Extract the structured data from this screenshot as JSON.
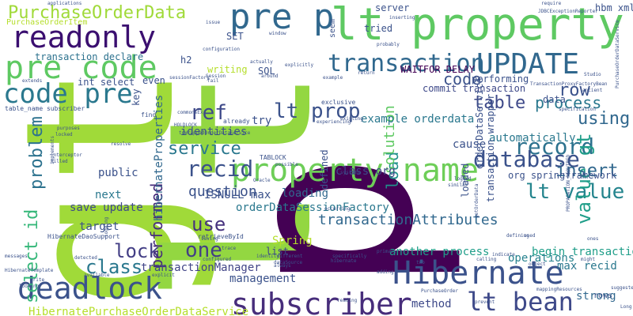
{
  "palette": [
    "#440154",
    "#3b528b",
    "#21918c",
    "#5ec962",
    "#fde725",
    "#2c728e",
    "#addc30",
    "#472d7b",
    "#28ae80",
    "#31688e"
  ],
  "words": [
    {
      "text": "gt",
      "color": "#a0da39",
      "rot": -90
    },
    {
      "text": "lt",
      "color": "#93d741",
      "rot": -90
    },
    {
      "text": "p",
      "color": "#440154",
      "rot": -90
    },
    {
      "text": "lt property",
      "color": "#5ec962",
      "rot": 0
    },
    {
      "text": "readonly",
      "color": "#3b0f70",
      "rot": 0
    },
    {
      "text": "pre p",
      "color": "#31688e",
      "rot": 0
    },
    {
      "text": "pre code",
      "color": "#5ec962",
      "rot": 0
    },
    {
      "text": "code pre",
      "color": "#2a788e",
      "rot": 0
    },
    {
      "text": "UPDATE",
      "color": "#31688e",
      "rot": 0
    },
    {
      "text": "transaction",
      "color": "#30688e",
      "rot": 0
    },
    {
      "text": "property name",
      "color": "#6ece58",
      "rot": 0
    },
    {
      "text": "Hibernate",
      "color": "#3b528b",
      "rot": 0
    },
    {
      "text": "deadlock",
      "color": "#3b528b",
      "rot": 0
    },
    {
      "text": "subscriber",
      "color": "#472d7b",
      "rot": 0
    },
    {
      "text": "lt bean",
      "color": "#3e4989",
      "rot": 0
    },
    {
      "text": "PurchaseOrderData",
      "color": "#a0da39",
      "rot": 0
    },
    {
      "text": "record",
      "color": "#2c728e",
      "rot": 0
    },
    {
      "text": "database",
      "color": "#3b528b",
      "rot": 0
    },
    {
      "text": "lt value",
      "color": "#25858e",
      "rot": 0
    },
    {
      "text": "value gt",
      "color": "#1f9e89",
      "rot": -90
    },
    {
      "text": "lt prop",
      "color": "#3b528b",
      "rot": 0
    },
    {
      "text": "ref",
      "color": "#3e4989",
      "rot": 0
    },
    {
      "text": "recid",
      "color": "#3b528b",
      "rot": 0
    },
    {
      "text": "service",
      "color": "#2a788e",
      "rot": 0
    },
    {
      "text": "select id",
      "color": "#35b779",
      "rot": -90
    },
    {
      "text": "problem",
      "color": "#2c728e",
      "rot": -90
    },
    {
      "text": "class",
      "color": "#2a788e",
      "rot": 0
    },
    {
      "text": "lock",
      "color": "#433e85",
      "rot": 0
    },
    {
      "text": "one",
      "color": "#433e85",
      "rot": 0
    },
    {
      "text": "use",
      "color": "#46327e",
      "rot": 0
    },
    {
      "text": "process",
      "color": "#2a788e",
      "rot": 0
    },
    {
      "text": "table",
      "color": "#3e4989",
      "rot": 0
    },
    {
      "text": "row",
      "color": "#3b528b",
      "rot": 0
    },
    {
      "text": "using",
      "color": "#31688e",
      "rot": 0
    },
    {
      "text": "insert",
      "color": "#31688e",
      "rot": 0
    },
    {
      "text": "code",
      "color": "#3b528b",
      "rot": 0
    },
    {
      "text": "load",
      "color": "#21918c",
      "rot": -90
    },
    {
      "text": "solution",
      "color": "#5ec962",
      "rot": -90
    },
    {
      "text": "performed",
      "color": "#472d7b",
      "rot": -90
    },
    {
      "text": "hibernateProperties",
      "color": "#31688e",
      "rot": -90
    },
    {
      "text": "question",
      "color": "#3b528b",
      "rot": 0
    },
    {
      "text": "transactionAttributes",
      "color": "#31688e",
      "rot": 0
    },
    {
      "text": "transactionManager",
      "color": "#414487",
      "rot": 0
    },
    {
      "text": "example orderdata",
      "color": "#2a788e",
      "rot": 0
    },
    {
      "text": "WAITFOR DELAY",
      "color": "#440154",
      "rot": 0
    },
    {
      "text": "commit transaction",
      "color": "#3e4989",
      "rot": 0
    },
    {
      "text": "transaction declare",
      "color": "#2c728e",
      "rot": 0
    },
    {
      "text": "HibernatePurchaseOrderDataService",
      "color": "#b5de2b",
      "rot": 0
    },
    {
      "text": "orderDataSessionFactory",
      "color": "#2a788e",
      "rot": 0
    },
    {
      "text": "another process",
      "color": "#1f9e89",
      "rot": 0
    },
    {
      "text": "begin transaction",
      "color": "#1f9e89",
      "rot": 0
    },
    {
      "text": "operations",
      "color": "#26828e",
      "rot": 0
    },
    {
      "text": "max recid",
      "color": "#2a788e",
      "rot": 0
    },
    {
      "text": "org springframework",
      "color": "#3b528b",
      "rot": 0
    },
    {
      "text": "automatically",
      "color": "#2a788e",
      "rot": 0
    },
    {
      "text": "identities",
      "color": "#3b528b",
      "rot": 0
    },
    {
      "text": "loading",
      "color": "#31688e",
      "rot": 0
    },
    {
      "text": "Spring",
      "color": "#b5de2b",
      "rot": 0
    },
    {
      "text": "management",
      "color": "#3b528b",
      "rot": 0
    },
    {
      "text": "method",
      "color": "#3e4989",
      "rot": 0
    },
    {
      "text": "strong",
      "color": "#31688e",
      "rot": 0
    },
    {
      "text": "target",
      "color": "#3b528b",
      "rot": 0
    },
    {
      "text": "save update",
      "color": "#3e4989",
      "rot": 0
    },
    {
      "text": "ISNULL max",
      "color": "#3b528b",
      "rot": 0
    },
    {
      "text": "class org",
      "color": "#3e4989",
      "rot": 0
    },
    {
      "text": "public",
      "color": "#3b528b",
      "rot": 0
    },
    {
      "text": "next",
      "color": "#2a788e",
      "rot": 0
    },
    {
      "text": "writing",
      "color": "#b5de2b",
      "rot": 0
    },
    {
      "text": "tried",
      "color": "#3b528b",
      "rot": 0
    },
    {
      "text": "SQL",
      "color": "#3b528b",
      "rot": 0
    },
    {
      "text": "server",
      "color": "#3b528b",
      "rot": 0
    },
    {
      "text": "PurchaseOrderItem",
      "color": "#b5de2b",
      "rot": 0
    },
    {
      "text": "int select",
      "color": "#3b528b",
      "rot": 0
    },
    {
      "text": "h2",
      "color": "#3b528b",
      "rot": 0
    },
    {
      "text": "even",
      "color": "#3b528b",
      "rot": 0
    },
    {
      "text": "SET",
      "color": "#3b528b",
      "rot": 0
    },
    {
      "text": "hbm xml",
      "color": "#3b528b",
      "rot": 0
    },
    {
      "text": "cause",
      "color": "#3b528b",
      "rot": 0
    },
    {
      "text": "try",
      "color": "#3b528b",
      "rot": 0
    },
    {
      "text": "list",
      "color": "#3e4989",
      "rot": 0
    },
    {
      "text": "data",
      "color": "#3b528b",
      "rot": 0
    },
    {
      "text": "defined",
      "color": "#3b528b",
      "rot": -90
    },
    {
      "text": "loaded",
      "color": "#3b528b",
      "rot": -90
    },
    {
      "text": "key",
      "color": "#3b528b",
      "rot": -90
    },
    {
      "text": "orderDataService",
      "color": "#3b528b",
      "rot": -90
    },
    {
      "text": "transaction wrapper",
      "color": "#3b528b",
      "rot": -90
    },
    {
      "text": "seem",
      "color": "#3b528b",
      "rot": -90
    },
    {
      "text": "performing",
      "color": "#3b528b",
      "rot": 0
    },
    {
      "text": "rows",
      "color": "#3b528b",
      "rot": 0
    },
    {
      "text": "TransactionProxyFactoryBean",
      "color": "#3b528b",
      "rot": 0
    },
    {
      "text": "toWrappedOrderDataService",
      "color": "#3b528b",
      "rot": 0
    },
    {
      "text": "HibernateDaoSupport",
      "color": "#3b528b",
      "rot": 0
    },
    {
      "text": "retrieveById",
      "color": "#3b528b",
      "rot": 0
    },
    {
      "text": "TABLOCK",
      "color": "#3b528b",
      "rot": 0
    },
    {
      "text": "already",
      "color": "#3b528b",
      "rot": 0
    },
    {
      "text": "exclusive",
      "color": "#3b528b",
      "rot": 0
    },
    {
      "text": "configuration",
      "color": "#3b528b",
      "rot": 0
    },
    {
      "text": "actually",
      "color": "#3b528b",
      "rot": 0
    },
    {
      "text": "explicitly",
      "color": "#3b528b",
      "rot": 0
    },
    {
      "text": "inserting",
      "color": "#3b528b",
      "rot": 0
    },
    {
      "text": "require",
      "color": "#3b528b",
      "rot": 0
    },
    {
      "text": "applications",
      "color": "#3b528b",
      "rot": 0
    },
    {
      "text": "issue",
      "color": "#3b528b",
      "rot": 0
    },
    {
      "text": "around",
      "color": "#3b528b",
      "rot": 0
    },
    {
      "text": "example",
      "color": "#3b528b",
      "rot": 0
    },
    {
      "text": "return",
      "color": "#3b528b",
      "rot": 0
    },
    {
      "text": "hibernate",
      "color": "#3b528b",
      "rot": 0
    },
    {
      "text": "Oracle",
      "color": "#3b528b",
      "rot": 0
    },
    {
      "text": "possible",
      "color": "#3b528b",
      "rot": 0
    },
    {
      "text": "experiencing",
      "color": "#3b528b",
      "rot": 0
    },
    {
      "text": "existing",
      "color": "#3b528b",
      "rot": 0
    },
    {
      "text": "interceptor",
      "color": "#3b528b",
      "rot": 0
    },
    {
      "text": "killed",
      "color": "#3b528b",
      "rot": 0
    },
    {
      "text": "purposes",
      "color": "#3b528b",
      "rot": 0
    },
    {
      "text": "locked",
      "color": "#3b528b",
      "rot": 0
    },
    {
      "text": "extends",
      "color": "#3b528b",
      "rot": 0
    },
    {
      "text": "messages",
      "color": "#3b528b",
      "rot": 0
    },
    {
      "text": "detected",
      "color": "#3b528b",
      "rot": 0
    },
    {
      "text": "resolve",
      "color": "#3b528b",
      "rot": 0
    },
    {
      "text": "systems",
      "color": "#3b528b",
      "rot": 0
    },
    {
      "text": "occurring",
      "color": "#3b528b",
      "rot": 0
    },
    {
      "text": "identity",
      "color": "#3b528b",
      "rot": 0
    },
    {
      "text": "different",
      "color": "#3b528b",
      "rot": 0
    },
    {
      "text": "specifically",
      "color": "#3b528b",
      "rot": 0
    },
    {
      "text": "adding",
      "color": "#3b528b",
      "rot": 0
    },
    {
      "text": "PurchaseOrder",
      "color": "#3b528b",
      "rot": 0
    },
    {
      "text": "reading",
      "color": "#3b528b",
      "rot": 0
    },
    {
      "text": "prevent",
      "color": "#3b528b",
      "rot": 0
    },
    {
      "text": "used",
      "color": "#3b528b",
      "rot": 0
    },
    {
      "text": "similar",
      "color": "#3b528b",
      "rot": 0
    },
    {
      "text": "calling",
      "color": "#3b528b",
      "rot": 0
    },
    {
      "text": "indicate",
      "color": "#3b528b",
      "rot": 0
    },
    {
      "text": "object",
      "color": "#3b528b",
      "rot": 0
    },
    {
      "text": "configured",
      "color": "#3b528b",
      "rot": 0
    },
    {
      "text": "explicit",
      "color": "#3b528b",
      "rot": 0
    },
    {
      "text": "available",
      "color": "#3b528b",
      "rot": 0
    },
    {
      "text": "looking",
      "color": "#3b528b",
      "rot": 0
    },
    {
      "text": "write",
      "color": "#3b528b",
      "rot": 0
    },
    {
      "text": "always",
      "color": "#3b528b",
      "rot": 0
    },
    {
      "text": "dataSource",
      "color": "#3b528b",
      "rot": 0
    },
    {
      "text": "ancient",
      "color": "#3b528b",
      "rot": 0
    },
    {
      "text": "logged",
      "color": "#3b528b",
      "rot": 0
    },
    {
      "text": "mappingResources",
      "color": "#3b528b",
      "rot": 0
    },
    {
      "text": "might",
      "color": "#3b528b",
      "rot": 0
    },
    {
      "text": "suggested",
      "color": "#3b528b",
      "rot": 0
    },
    {
      "text": "Long",
      "color": "#3b528b",
      "rot": 0
    },
    {
      "text": "find",
      "color": "#3b528b",
      "rot": 0
    },
    {
      "text": "fail",
      "color": "#3b528b",
      "rot": 0
    },
    {
      "text": "Session",
      "color": "#3b528b",
      "rot": 0
    },
    {
      "text": "Studio",
      "color": "#3b528b",
      "rot": 0
    },
    {
      "text": "JDBCExceptionReporter",
      "color": "#3b528b",
      "rot": 0
    },
    {
      "text": "specification",
      "color": "#3b528b",
      "rot": 0
    },
    {
      "text": "PROPAGATION_REQUIRED",
      "color": "#3b528b",
      "rot": -90
    },
    {
      "text": "PurchaseOrderDataService",
      "color": "#3b528b",
      "rot": -90
    },
    {
      "text": "getOrderData",
      "color": "#3b528b",
      "rot": -90
    },
    {
      "text": "sessionFactory",
      "color": "#3b528b",
      "rot": 0
    },
    {
      "text": "commonsEx",
      "color": "#3b528b",
      "rot": 0
    },
    {
      "text": "table_name subscriber",
      "color": "#3b528b",
      "rot": 0
    },
    {
      "text": "implements",
      "color": "#3b528b",
      "rot": -90
    },
    {
      "text": "logging",
      "color": "#3b528b",
      "rot": -90
    },
    {
      "text": "trace",
      "color": "#3b528b",
      "rot": 0
    },
    {
      "text": "HibernateTemplate",
      "color": "#3b528b",
      "rot": 0
    },
    {
      "text": "HOLDLOCK",
      "color": "#3b528b",
      "rot": 0
    },
    {
      "text": "saving",
      "color": "#3b528b",
      "rot": 0
    },
    {
      "text": "defining",
      "color": "#3b528b",
      "rot": 0
    },
    {
      "text": "ones",
      "color": "#3b528b",
      "rot": 0
    },
    {
      "text": "two",
      "color": "#3b528b",
      "rot": 0
    },
    {
      "text": "primary",
      "color": "#3b528b",
      "rot": 0
    },
    {
      "text": "probably",
      "color": "#3b528b",
      "rot": 0
    },
    {
      "text": "window",
      "color": "#3b528b",
      "rot": 0
    }
  ]
}
